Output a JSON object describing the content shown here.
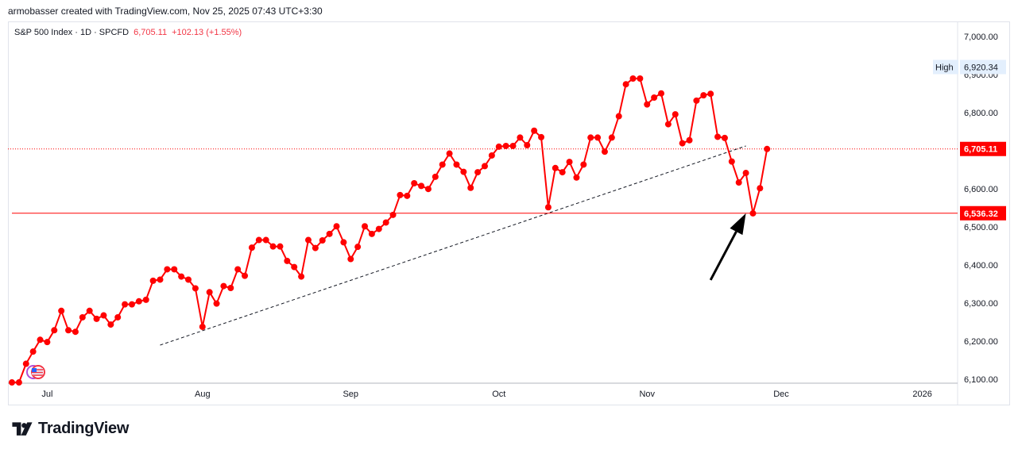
{
  "header": {
    "attribution": "armobasser created with TradingView.com, Nov 25, 2025 07:43 UTC+3:30"
  },
  "legend": {
    "symbol": "S&P 500 Index · 1D · SPCFD",
    "last": "6,705.11",
    "change": "+102.13 (+1.55%)"
  },
  "colors": {
    "series": "#ff0000",
    "trendline": "#131722",
    "arrow": "#000000",
    "grid_border": "#e0e3eb"
  },
  "annotations": {
    "high_label": "High",
    "high_value": "6,920.34",
    "last_badge": "6,705.11",
    "low_badge": "6,536.32"
  },
  "logo": {
    "text": "TradingView"
  },
  "chart_data": {
    "type": "line",
    "title": "S&P 500 Index · 1D · SPCFD",
    "ylim": [
      6090,
      7040
    ],
    "y_ticks": [
      6100,
      6200,
      6300,
      6400,
      6500,
      6600,
      6700,
      6800,
      6900,
      7000
    ],
    "y_tick_labels": [
      "6,100.00",
      "6,200.00",
      "6,300.00",
      "6,400.00",
      "6,500.00",
      "6,600.00",
      "6,700.00",
      "6,800.00",
      "6,900.00",
      "7,000.00"
    ],
    "x_tick_labels": [
      "Jul",
      "Aug",
      "Sep",
      "Oct",
      "Nov",
      "Dec",
      "2026"
    ],
    "x_tick_index": [
      5,
      27,
      48,
      69,
      90,
      109,
      129
    ],
    "x_range": [
      0,
      134
    ],
    "grid": false,
    "series": [
      {
        "values": [
          6092,
          6092,
          6141,
          6173,
          6204,
          6198,
          6229,
          6280,
          6229,
          6225,
          6263,
          6280,
          6259,
          6268,
          6244,
          6263,
          6297,
          6297,
          6305,
          6309,
          6359,
          6362,
          6389,
          6389,
          6370,
          6362,
          6339,
          6238,
          6329,
          6299,
          6345,
          6340,
          6389,
          6372,
          6446,
          6466,
          6466,
          6449,
          6449,
          6411,
          6395,
          6370,
          6466,
          6445,
          6465,
          6482,
          6502,
          6460,
          6416,
          6448,
          6502,
          6482,
          6495,
          6512,
          6532,
          6584,
          6582,
          6615,
          6608,
          6600,
          6632,
          6664,
          6693,
          6664,
          6645,
          6603,
          6644,
          6660,
          6688,
          6711,
          6713,
          6713,
          6735,
          6715,
          6753,
          6736,
          6552,
          6655,
          6644,
          6671,
          6630,
          6664,
          6735,
          6735,
          6698,
          6735,
          6791,
          6875,
          6890,
          6890,
          6822,
          6840,
          6851,
          6770,
          6796,
          6720,
          6728,
          6832,
          6846,
          6850,
          6737,
          6734,
          6672,
          6617,
          6642,
          6536,
          6602,
          6705
        ],
        "x_start": 0
      }
    ],
    "trendline": {
      "x": [
        21,
        104
      ],
      "y": [
        6190,
        6713
      ]
    },
    "high_line": 6920.34,
    "last_line": 6705.11,
    "low_line": 6536.32,
    "arrow": {
      "from": [
        99,
        6361
      ],
      "to": [
        104,
        6536
      ]
    }
  }
}
